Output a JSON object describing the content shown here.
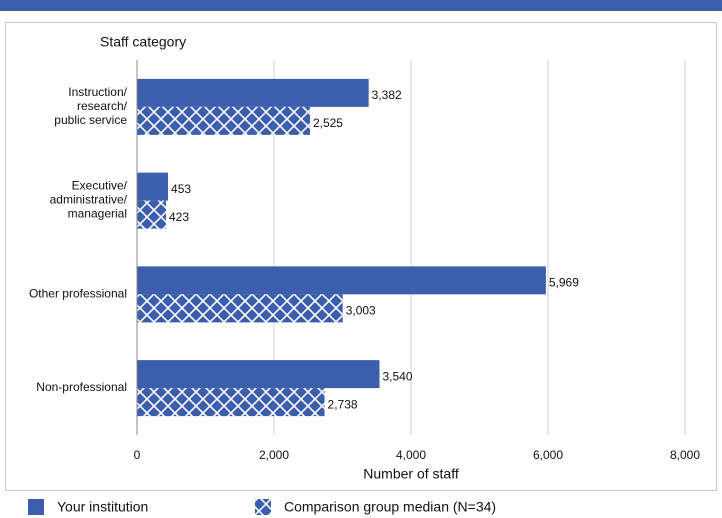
{
  "chart_data": {
    "type": "hbar",
    "y_axis_title": "Staff category",
    "x_axis_title": "Number of staff",
    "categories": [
      [
        "Instruction/",
        "research/",
        "public service"
      ],
      [
        "Executive/",
        "administrative/",
        "managerial"
      ],
      [
        "Other professional"
      ],
      [
        "Non-professional"
      ]
    ],
    "series": [
      {
        "name": "Your institution",
        "color": "#3b5fad",
        "pattern": "solid",
        "values": [
          3382,
          453,
          5969,
          3540
        ],
        "value_labels": [
          "3,382",
          "453",
          "5,969",
          "3,540"
        ]
      },
      {
        "name": "Comparison group median (N=34)",
        "color": "#3b5fad",
        "pattern": "crosshatch",
        "values": [
          2525,
          423,
          3003,
          2738
        ],
        "value_labels": [
          "2,525",
          "423",
          "3,003",
          "2,738"
        ]
      }
    ],
    "xlim": [
      0,
      8000
    ],
    "xticks": [
      0,
      {
        "value": 2000,
        "label": "2,000"
      },
      {
        "value": 4000,
        "label": "4,000"
      },
      {
        "value": 6000,
        "label": "6,000"
      },
      {
        "value": 8000,
        "label": "8,000"
      }
    ],
    "grid": true
  }
}
